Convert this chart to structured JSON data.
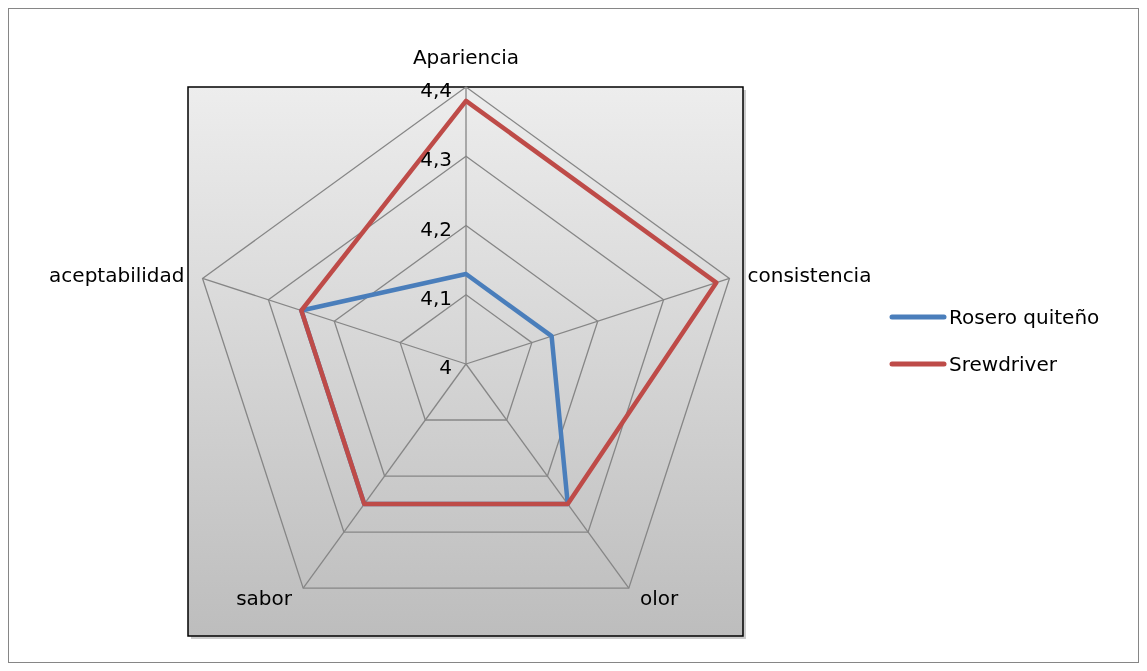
{
  "chart_data": {
    "type": "radar",
    "categories": [
      "Apariencia",
      "consistencia",
      "olor",
      "sabor",
      "aceptabilidad"
    ],
    "series": [
      {
        "name": "Rosero quiteño",
        "color": "#4a7ebb",
        "values": [
          4.13,
          4.13,
          4.25,
          4.25,
          4.25
        ]
      },
      {
        "name": "Srewdriver",
        "color": "#be4b48",
        "values": [
          4.38,
          4.38,
          4.25,
          4.25,
          4.25
        ]
      }
    ],
    "ylim": [
      4,
      4.4
    ],
    "yticks": [
      4,
      {
        "value": 4.1,
        "label": "4,1"
      },
      {
        "value": 4.2,
        "label": "4,2"
      },
      {
        "value": 4.3,
        "label": "4,3"
      },
      {
        "value": 4.4,
        "label": "4,4"
      }
    ],
    "grid": true,
    "legend": "right",
    "line_style": "solid"
  }
}
